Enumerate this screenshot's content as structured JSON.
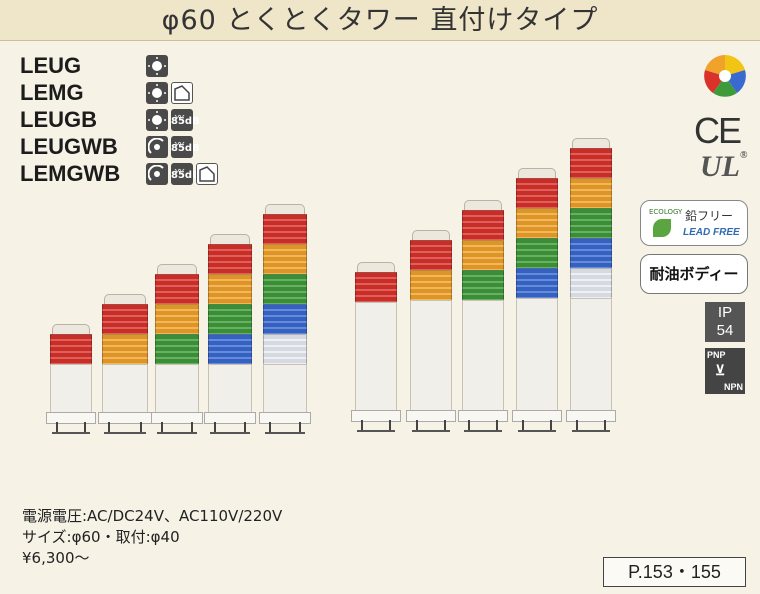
{
  "title": "φ60 とくとくタワー 直付けタイプ",
  "models": [
    {
      "name": "LEUG",
      "icons": [
        "led-icon"
      ]
    },
    {
      "name": "LEMG",
      "icons": [
        "led-icon",
        "direct-mount-icon"
      ]
    },
    {
      "name": "LEUGB",
      "icons": [
        "led-icon",
        "buzzer-85db-icon"
      ]
    },
    {
      "name": "LEUGWB",
      "icons": [
        "flash-led-icon",
        "buzzer-85db-icon"
      ]
    },
    {
      "name": "LEMGWB",
      "icons": [
        "flash-led-icon",
        "buzzer-85db-icon",
        "direct-mount-icon"
      ]
    }
  ],
  "sound_level": "85dB",
  "towers_left": [
    [
      "red",
      "orange"
    ],
    [
      "red",
      "orange",
      "green"
    ],
    [
      "red",
      "orange",
      "green",
      "blue"
    ],
    [
      "red",
      "orange",
      "green",
      "blue",
      "white"
    ]
  ],
  "towers_right": [
    [
      "red"
    ],
    [
      "red",
      "orange"
    ],
    [
      "red",
      "orange",
      "green"
    ],
    [
      "red",
      "orange",
      "green",
      "blue"
    ],
    [
      "red",
      "orange",
      "green",
      "blue",
      "white"
    ]
  ],
  "badges": {
    "ce": "CE",
    "ul": "UL",
    "eco_small": "ECOLOGY",
    "eco_jp": "鉛フリー",
    "eco_en": "LEAD FREE",
    "oil": "耐油ボディー",
    "ip_line1": "IP",
    "ip_line2": "54",
    "pnp": "PNP",
    "npn": "NPN"
  },
  "specs": {
    "voltage": "電源電圧:AC/DC24V、AC110V/220V",
    "size": "サイズ:φ60・取付:φ40",
    "price": "¥6,300〜"
  },
  "page_ref": "P.153・155",
  "colors": {
    "red": "#d9322b",
    "orange": "#f0a22a",
    "green": "#3f9a3a",
    "blue": "#3a6ad0",
    "white": "#e8ecf2"
  }
}
